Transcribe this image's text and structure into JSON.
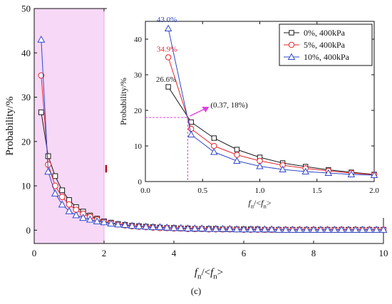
{
  "panel_label": "(c)",
  "colors": {
    "series": [
      "#1a1a1a",
      "#e8262b",
      "#2f49c9"
    ],
    "highlight_fill": "#f7d8f7",
    "guide": "#e040e0",
    "arrow": "#c00000"
  },
  "chart_data": [
    {
      "type": "line",
      "role": "main",
      "xlabel": {
        "main": "f",
        "sub": "n",
        "mid": "/<",
        "main2": "f",
        "sub2": "n",
        "end": ">"
      },
      "ylabel": "Probability/%",
      "xlim": [
        0,
        10
      ],
      "ylim": [
        -3,
        50
      ],
      "xticks": [
        0,
        2,
        4,
        6,
        8,
        10
      ],
      "yticks": [
        0,
        10,
        20,
        30,
        40,
        50
      ],
      "highlight_x_range": [
        0,
        2
      ],
      "grid": false,
      "series": [
        {
          "name": "0%, 400kPa",
          "marker": "square",
          "x": [
            0.2,
            0.4,
            0.6,
            0.8,
            1.0,
            1.2,
            1.4,
            1.6,
            1.8,
            2.0,
            2.2,
            2.4,
            2.6,
            2.8,
            3.0,
            3.2,
            3.4,
            3.6,
            3.8,
            4.0,
            4.2,
            4.4,
            4.6,
            4.8,
            5.0,
            5.2,
            5.4,
            5.6,
            5.8,
            6.0,
            6.2,
            6.4,
            6.6,
            6.8,
            7.0,
            7.2,
            7.4,
            7.6,
            7.8,
            8.0,
            8.2,
            8.4,
            8.6,
            8.8,
            9.0,
            9.2,
            9.4,
            9.6,
            9.8,
            10.0
          ],
          "y": [
            26.6,
            16.7,
            12.2,
            9.0,
            6.8,
            5.2,
            4.2,
            3.3,
            2.6,
            2.0,
            1.7,
            1.4,
            1.2,
            1.0,
            0.9,
            0.8,
            0.7,
            0.6,
            0.5,
            0.5,
            0.4,
            0.4,
            0.3,
            0.3,
            0.3,
            0.3,
            0.2,
            0.2,
            0.2,
            0.2,
            0.2,
            0.2,
            0.1,
            0.1,
            0.1,
            0.1,
            0.1,
            0.1,
            0.1,
            0.1,
            0.1,
            0.1,
            0.1,
            0.1,
            0.1,
            0.1,
            0.1,
            0.1,
            0.1,
            0.1
          ]
        },
        {
          "name": "5%, 400kPa",
          "marker": "circle",
          "x": [
            0.2,
            0.4,
            0.6,
            0.8,
            1.0,
            1.2,
            1.4,
            1.6,
            1.8,
            2.0,
            2.2,
            2.4,
            2.6,
            2.8,
            3.0,
            3.2,
            3.4,
            3.6,
            3.8,
            4.0,
            4.2,
            4.4,
            4.6,
            4.8,
            5.0,
            5.2,
            5.4,
            5.6,
            5.8,
            6.0,
            6.2,
            6.4,
            6.6,
            6.8,
            7.0,
            7.2,
            7.4,
            7.6,
            7.8,
            8.0,
            8.2,
            8.4,
            8.6,
            8.8,
            9.0,
            9.2,
            9.4,
            9.6,
            9.8,
            10.0
          ],
          "y": [
            34.9,
            14.8,
            10.0,
            7.5,
            5.8,
            4.6,
            3.7,
            3.0,
            2.4,
            1.9,
            1.6,
            1.3,
            1.1,
            0.9,
            0.8,
            0.7,
            0.6,
            0.5,
            0.5,
            0.4,
            0.4,
            0.3,
            0.3,
            0.3,
            0.2,
            0.2,
            0.2,
            0.2,
            0.2,
            0.1,
            0.1,
            0.1,
            0.1,
            0.1,
            0.1,
            0.1,
            0.1,
            0.1,
            0.1,
            0.1,
            0.1,
            0.1,
            0.1,
            0.1,
            0.1,
            0.1,
            0.1,
            0.1,
            0.1,
            0.1
          ]
        },
        {
          "name": "10%, 400kPa",
          "marker": "triangle",
          "x": [
            0.2,
            0.4,
            0.6,
            0.8,
            1.0,
            1.2,
            1.4,
            1.6,
            1.8,
            2.0,
            2.2,
            2.4,
            2.6,
            2.8,
            3.0,
            3.2,
            3.4,
            3.6,
            3.8,
            4.0,
            4.2,
            4.4,
            4.6,
            4.8,
            5.0,
            5.2,
            5.4,
            5.6,
            5.8,
            6.0,
            6.2,
            6.4,
            6.6,
            6.8,
            7.0,
            7.2,
            7.4,
            7.6,
            7.8,
            8.0,
            8.2,
            8.4,
            8.6,
            8.8,
            9.0,
            9.2,
            9.4,
            9.6,
            9.8,
            10.0
          ],
          "y": [
            43.0,
            13.2,
            8.3,
            5.8,
            4.3,
            3.4,
            2.8,
            2.4,
            2.0,
            1.8,
            1.5,
            1.3,
            1.2,
            1.0,
            0.9,
            0.8,
            0.7,
            0.7,
            0.6,
            0.5,
            0.5,
            0.4,
            0.4,
            0.4,
            0.3,
            0.3,
            0.3,
            0.3,
            0.2,
            0.2,
            0.2,
            0.2,
            0.2,
            0.2,
            0.1,
            0.1,
            0.1,
            0.1,
            0.1,
            0.1,
            0.1,
            0.1,
            0.1,
            0.1,
            0.1,
            0.1,
            0.1,
            0.1,
            0.1,
            0.1
          ]
        }
      ]
    },
    {
      "type": "line",
      "role": "inset",
      "xlabel": {
        "main": "f",
        "sub": "n",
        "mid": "/<",
        "main2": "f",
        "sub2": "n",
        "end": ">"
      },
      "ylabel": "Probability/%",
      "xlim": [
        0,
        2
      ],
      "ylim": [
        0,
        45
      ],
      "xticks": [
        0.0,
        0.5,
        1.0,
        1.5,
        2.0
      ],
      "yticks": [
        0,
        10,
        20,
        30,
        40
      ],
      "grid": false,
      "legend": "top-right",
      "series": [
        {
          "name": "0%, 400kPa",
          "marker": "square",
          "x": [
            0.2,
            0.4,
            0.6,
            0.8,
            1.0,
            1.2,
            1.4,
            1.6,
            1.8,
            2.0
          ],
          "y": [
            26.6,
            16.7,
            12.2,
            9.0,
            6.8,
            5.2,
            4.2,
            3.3,
            2.6,
            2.0
          ]
        },
        {
          "name": "5%, 400kPa",
          "marker": "circle",
          "x": [
            0.2,
            0.4,
            0.6,
            0.8,
            1.0,
            1.2,
            1.4,
            1.6,
            1.8,
            2.0
          ],
          "y": [
            34.9,
            14.8,
            10.0,
            7.5,
            5.8,
            4.6,
            3.7,
            3.0,
            2.4,
            1.9
          ]
        },
        {
          "name": "10%, 400kPa",
          "marker": "triangle",
          "x": [
            0.2,
            0.4,
            0.6,
            0.8,
            1.0,
            1.2,
            1.4,
            1.6,
            1.8,
            2.0
          ],
          "y": [
            43.0,
            13.2,
            8.3,
            5.8,
            4.3,
            3.4,
            2.8,
            2.4,
            2.0,
            1.8
          ]
        }
      ],
      "annotations": [
        {
          "text": "43.0%",
          "x": 0.2,
          "y": 43.0,
          "series": 2
        },
        {
          "text": "34.9%",
          "x": 0.2,
          "y": 34.9,
          "series": 1
        },
        {
          "text": "26.6%",
          "x": 0.2,
          "y": 26.6,
          "series": 0
        },
        {
          "text": "(0.37, 18%)",
          "x": 0.37,
          "y": 18.0,
          "series": -1
        }
      ],
      "crossing_point": [
        0.37,
        18.0
      ]
    }
  ]
}
